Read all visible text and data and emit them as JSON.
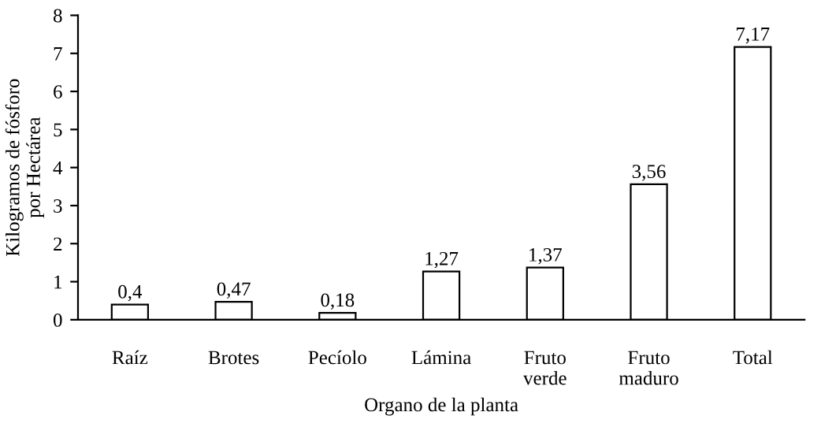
{
  "chart_data": {
    "type": "bar",
    "categories": [
      "Raíz",
      "Brotes",
      "Pecíolo",
      "Lámina",
      "Fruto\nverde",
      "Fruto\nmaduro",
      "Total"
    ],
    "values": [
      0.4,
      0.47,
      0.18,
      1.27,
      1.37,
      3.56,
      7.17
    ],
    "value_labels": [
      "0,4",
      "0,47",
      "0,18",
      "1,27",
      "1,37",
      "3,56",
      "7,17"
    ],
    "color": "#ffffff",
    "xlabel": "Organo de la planta",
    "ylabel": "Kilogramos de fósforo\npor Hectárea",
    "ylim": [
      0,
      8
    ],
    "yticks": [
      0,
      1,
      2,
      3,
      4,
      5,
      6,
      7,
      8
    ],
    "grid": false
  }
}
